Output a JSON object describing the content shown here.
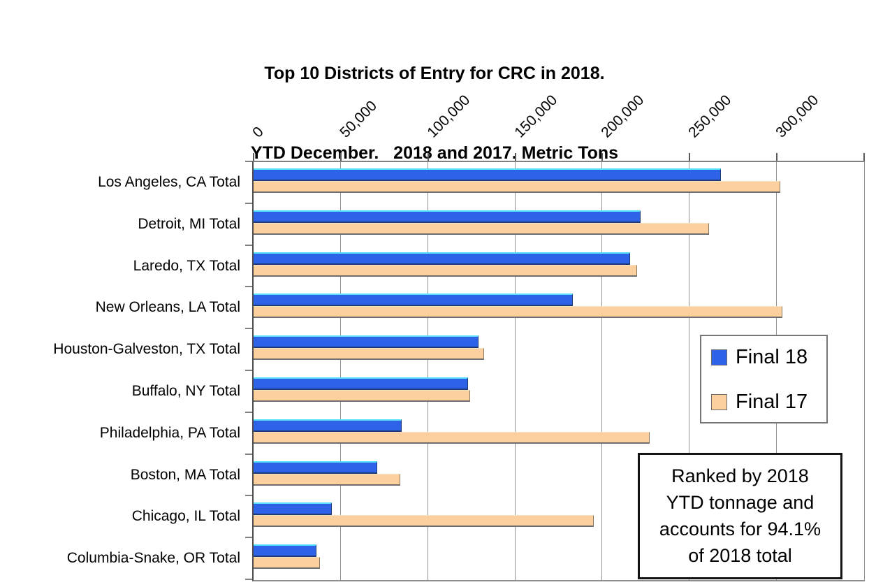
{
  "title": {
    "line1": "Top 10 Districts of Entry for CRC in 2018.",
    "line2": "YTD December.   2018 and 2017. Metric Tons"
  },
  "chart_data": {
    "type": "bar",
    "orientation": "horizontal",
    "title": "Top 10 Districts of Entry for CRC in 2018. YTD December. 2018 and 2017. Metric Tons",
    "categories": [
      "Los Angeles, CA Total",
      "Detroit, MI Total",
      "Laredo, TX Total",
      "New Orleans, LA Total",
      "Houston-Galveston, TX Total",
      "Buffalo, NY Total",
      "Philadelphia, PA Total",
      "Boston, MA Total",
      "Chicago, IL Total",
      "Columbia-Snake, OR Total"
    ],
    "series": [
      {
        "name": "Final 18",
        "color": "#2E63E8",
        "values": [
          268000,
          222000,
          216000,
          183000,
          129000,
          123000,
          85000,
          71000,
          45000,
          36000
        ]
      },
      {
        "name": "Final 17",
        "color": "#FBCF9E",
        "values": [
          302000,
          261000,
          220000,
          303000,
          132000,
          124000,
          227000,
          84000,
          195000,
          38000
        ]
      }
    ],
    "x_axis": {
      "position": "top",
      "min": 0,
      "max": 350000,
      "tick_interval": 50000,
      "tick_values": [
        0,
        50000,
        100000,
        150000,
        200000,
        250000,
        300000
      ],
      "tick_labels": [
        "0",
        "50,000",
        "100,000",
        "150,000",
        "200,000",
        "250,000",
        "300,000"
      ],
      "label_rotation": 45,
      "grid": true
    },
    "ylabel": "",
    "xlabel": "",
    "legend_position": "overlay-right"
  },
  "legend": {
    "items": [
      {
        "label": "Final 18",
        "color": "#2E63E8"
      },
      {
        "label": "Final 17",
        "color": "#FBCF9E"
      }
    ]
  },
  "annotation": {
    "lines": [
      "Ranked by 2018",
      "YTD tonnage and",
      "accounts for 94.1%",
      "of 2018 total"
    ]
  }
}
